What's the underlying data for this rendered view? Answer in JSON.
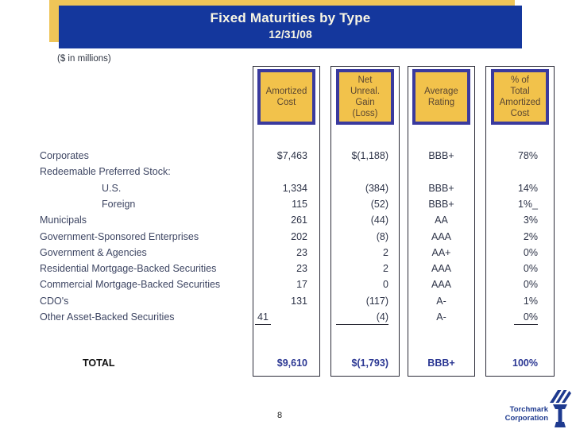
{
  "slide": {
    "title": "Fixed Maturities by Type",
    "subtitle": "12/31/08",
    "units_note": "($ in millions)",
    "page_number": "8"
  },
  "colors": {
    "banner_blue": "#14379D",
    "banner_gold": "#EFC558",
    "header_box_gold": "#F2C24B",
    "header_box_border": "#3A3A9E",
    "header_text": "#5A4632",
    "label_text": "#3E4663",
    "value_text": "#2E3448",
    "total_value_text": "#2B3793",
    "column_line": "#2B2B38",
    "logo_navy": "#1E3A8F"
  },
  "table": {
    "columns": [
      {
        "key": "amortized_cost",
        "label": "Amortized\nCost"
      },
      {
        "key": "net_unreal",
        "label": "Net\nUnreal.\nGain\n(Loss)"
      },
      {
        "key": "rating",
        "label": "Average\nRating"
      },
      {
        "key": "pct",
        "label": "% of\nTotal\nAmortized\nCost"
      }
    ],
    "rows": [
      {
        "label": "Corporates",
        "indent": 0,
        "amortized_cost": "$7,463",
        "net_unreal": "$(1,188)",
        "rating": "BBB+",
        "pct": "78%"
      },
      {
        "label": "Redeemable Preferred Stock:",
        "indent": 0,
        "amortized_cost": "",
        "net_unreal": "",
        "rating": "",
        "pct": ""
      },
      {
        "label": "U.S.",
        "indent": 1,
        "amortized_cost": "1,334",
        "net_unreal": "(384)",
        "rating": "BBB+",
        "pct": "14%"
      },
      {
        "label": "Foreign",
        "indent": 1,
        "amortized_cost": "115",
        "net_unreal": "(52)",
        "rating": "BBB+",
        "pct": "1%_"
      },
      {
        "label": "Municipals",
        "indent": 0,
        "amortized_cost": "261",
        "net_unreal": "(44)",
        "rating": "AA",
        "pct": "3%"
      },
      {
        "label": "Government-Sponsored Enterprises",
        "indent": 0,
        "amortized_cost": "202",
        "net_unreal": "(8)",
        "rating": "AAA",
        "pct": "2%"
      },
      {
        "label": "Government & Agencies",
        "indent": 0,
        "amortized_cost": "23",
        "net_unreal": "2",
        "rating": "AA+",
        "pct": "0%"
      },
      {
        "label": "Residential Mortgage-Backed Securities",
        "indent": 0,
        "amortized_cost": "23",
        "net_unreal": "2",
        "rating": "AAA",
        "pct": "0%"
      },
      {
        "label": "Commercial Mortgage-Backed Securities",
        "indent": 0,
        "amortized_cost": "17",
        "net_unreal": "0",
        "rating": "AAA",
        "pct": "0%"
      },
      {
        "label": "CDO's",
        "indent": 0,
        "amortized_cost": "131",
        "net_unreal": "(117)",
        "rating": "A-",
        "pct": "1%"
      },
      {
        "label": "Other Asset-Backed Securities",
        "indent": 0,
        "amortized_cost": "41",
        "net_unreal": "(4)",
        "rating": "A-",
        "pct": "0%",
        "sum_underline": true
      }
    ],
    "total": {
      "label": "TOTAL",
      "amortized_cost": "$9,610",
      "net_unreal": "$(1,793)",
      "rating": "BBB+",
      "pct": "100%"
    }
  },
  "footer": {
    "logo_line1": "Torchmark",
    "logo_line2": "Corporation"
  }
}
